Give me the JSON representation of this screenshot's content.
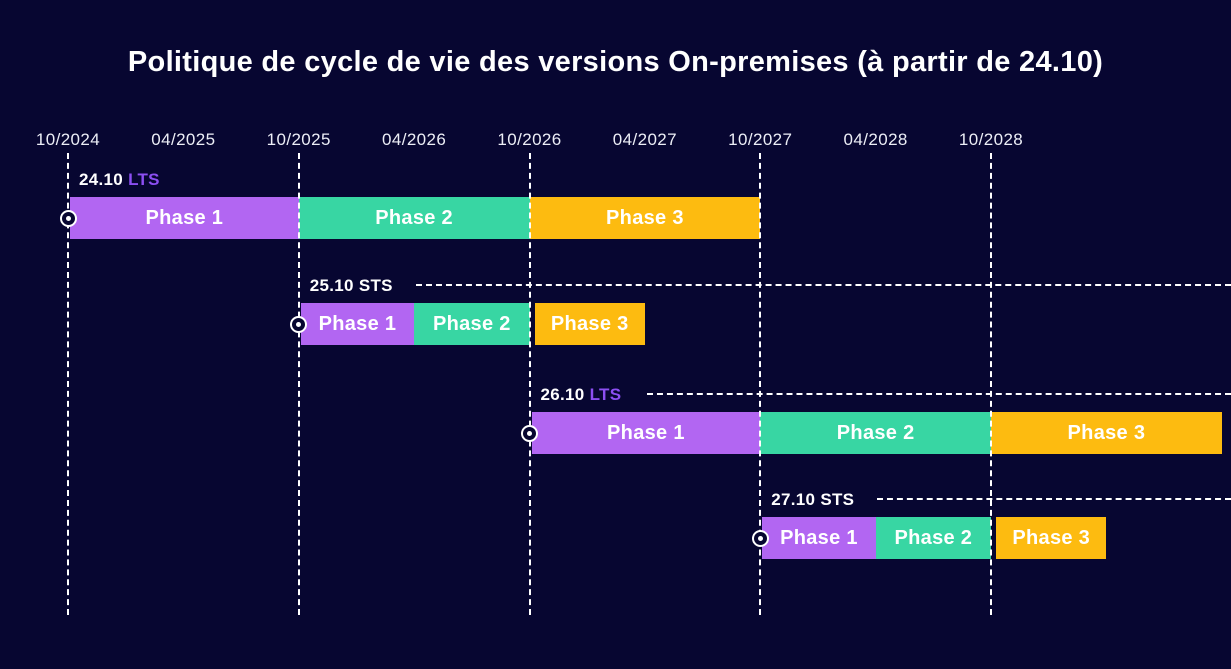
{
  "chart_data": {
    "type": "gantt",
    "title": "Politique de cycle de vie des versions On-premises (à partir de 24.10)",
    "x_ticks": [
      "10/2024",
      "04/2025",
      "10/2025",
      "04/2026",
      "10/2026",
      "04/2027",
      "10/2027",
      "04/2028",
      "10/2028"
    ],
    "gridlines": [
      "10/2024",
      "10/2025",
      "10/2026",
      "10/2027",
      "10/2028"
    ],
    "axis_range": [
      "10/2024",
      "10/2028"
    ],
    "background_color": "#070631",
    "phase_colors": {
      "phase1": "#b266f2",
      "phase2": "#38d6a3",
      "phase3": "#fdbb10"
    },
    "type_label_colors": {
      "LTS": "#8c4ff2",
      "STS": "#ffffff"
    },
    "releases": [
      {
        "version": "24.10",
        "type": "LTS",
        "start": "10/2024",
        "dashed_line_to_edge": false,
        "gap_before_phase3": false,
        "phases": [
          {
            "label": "Phase 1",
            "start": "10/2024",
            "end": "10/2025"
          },
          {
            "label": "Phase 2",
            "start": "10/2025",
            "end": "10/2026"
          },
          {
            "label": "Phase 3",
            "start": "10/2026",
            "end": "10/2027"
          }
        ]
      },
      {
        "version": "25.10",
        "type": "STS",
        "start": "10/2025",
        "dashed_line_to_edge": true,
        "gap_before_phase3": true,
        "phases": [
          {
            "label": "Phase 1",
            "start": "10/2025",
            "end": "04/2026"
          },
          {
            "label": "Phase 2",
            "start": "04/2026",
            "end": "10/2026"
          },
          {
            "label": "Phase 3",
            "start": "10/2026",
            "end": "04/2027"
          }
        ]
      },
      {
        "version": "26.10",
        "type": "LTS",
        "start": "10/2026",
        "dashed_line_to_edge": true,
        "gap_before_phase3": false,
        "phases": [
          {
            "label": "Phase 1",
            "start": "10/2026",
            "end": "10/2027"
          },
          {
            "label": "Phase 2",
            "start": "10/2027",
            "end": "10/2028"
          },
          {
            "label": "Phase 3",
            "start": "10/2028",
            "end": "10/2029"
          }
        ]
      },
      {
        "version": "27.10",
        "type": "STS",
        "start": "10/2027",
        "dashed_line_to_edge": true,
        "gap_before_phase3": true,
        "phases": [
          {
            "label": "Phase 1",
            "start": "10/2027",
            "end": "04/2028"
          },
          {
            "label": "Phase 2",
            "start": "04/2028",
            "end": "10/2028"
          },
          {
            "label": "Phase 3",
            "start": "10/2028",
            "end": "04/2029"
          }
        ]
      }
    ]
  }
}
